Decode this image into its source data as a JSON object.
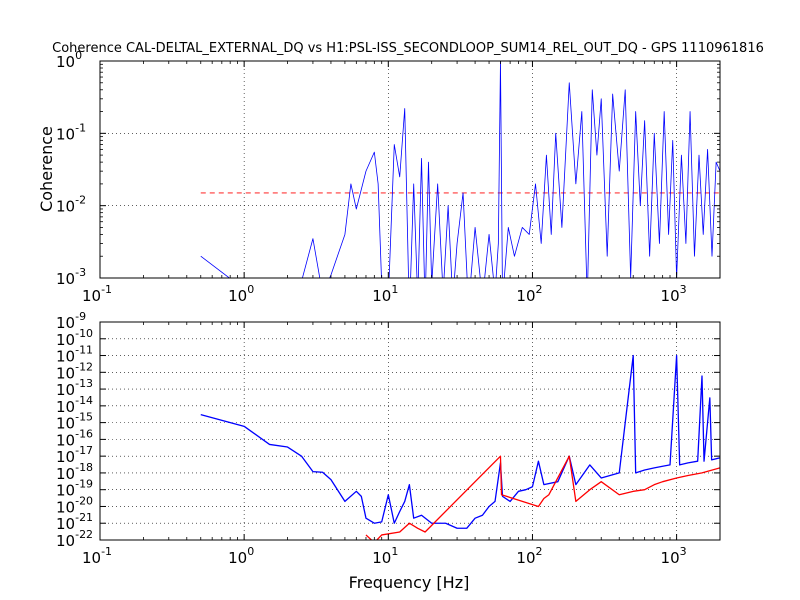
{
  "chart_data": [
    {
      "type": "line",
      "title": "Coherence CAL-DELTAL_EXTERNAL_DQ vs H1:PSL-ISS_SECONDLOOP_SUM14_REL_OUT_DQ - GPS 1110961816",
      "xlabel": "",
      "ylabel": "Coherence",
      "xscale": "log",
      "yscale": "log",
      "xlim": [
        0.1,
        2000
      ],
      "ylim": [
        0.001,
        1
      ],
      "grid": true,
      "x_tick_labels": [
        {
          "base": "10",
          "exp": "-1",
          "value": 0.1
        },
        {
          "base": "10",
          "exp": "0",
          "value": 1
        },
        {
          "base": "10",
          "exp": "1",
          "value": 10
        },
        {
          "base": "10",
          "exp": "2",
          "value": 100
        },
        {
          "base": "10",
          "exp": "3",
          "value": 1000
        }
      ],
      "y_tick_labels": [
        {
          "base": "10",
          "exp": "-3",
          "value": 0.001
        },
        {
          "base": "10",
          "exp": "-2",
          "value": 0.01
        },
        {
          "base": "10",
          "exp": "-1",
          "value": 0.1
        },
        {
          "base": "10",
          "exp": "0",
          "value": 1
        }
      ],
      "threshold": {
        "value": 0.015,
        "x_range": [
          0.5,
          2000
        ],
        "color": "#ff0000",
        "style": "dashed"
      },
      "series": [
        {
          "color": "#0000ff",
          "points": [
            [
              0.5,
              0.002
            ],
            [
              1.0,
              0.0007
            ],
            [
              2.5,
              0.0009
            ],
            [
              3.0,
              0.0035
            ],
            [
              3.5,
              0.0006
            ],
            [
              4.0,
              0.0011
            ],
            [
              5.0,
              0.004
            ],
            [
              5.5,
              0.02
            ],
            [
              6.0,
              0.009
            ],
            [
              7.0,
              0.03
            ],
            [
              8.0,
              0.055
            ],
            [
              8.5,
              0.02
            ],
            [
              9.0,
              0.0008
            ],
            [
              10.0,
              0.0005
            ],
            [
              11.0,
              0.07
            ],
            [
              12.0,
              0.025
            ],
            [
              13.0,
              0.22
            ],
            [
              14.0,
              0.0003
            ],
            [
              15.0,
              0.02
            ],
            [
              16.0,
              0.0005
            ],
            [
              17.0,
              0.045
            ],
            [
              18.0,
              0.0004
            ],
            [
              19.0,
              0.04
            ],
            [
              20.0,
              0.0008
            ],
            [
              22.0,
              0.02
            ],
            [
              24.0,
              0.0006
            ],
            [
              26.0,
              0.01
            ],
            [
              28.0,
              0.0005
            ],
            [
              30.0,
              0.003
            ],
            [
              33.0,
              0.015
            ],
            [
              36.0,
              0.0004
            ],
            [
              40.0,
              0.005
            ],
            [
              45.0,
              0.0005
            ],
            [
              50.0,
              0.004
            ],
            [
              55.0,
              0.0006
            ],
            [
              58.0,
              0.003
            ],
            [
              60.0,
              1.0
            ],
            [
              62.0,
              0.0005
            ],
            [
              68.0,
              0.005
            ],
            [
              75.0,
              0.002
            ],
            [
              85.0,
              0.005
            ],
            [
              95.0,
              0.004
            ],
            [
              105.0,
              0.02
            ],
            [
              115.0,
              0.003
            ],
            [
              125.0,
              0.05
            ],
            [
              135.0,
              0.004
            ],
            [
              145.0,
              0.1
            ],
            [
              160.0,
              0.005
            ],
            [
              180.0,
              0.5
            ],
            [
              200.0,
              0.02
            ],
            [
              220.0,
              0.2
            ],
            [
              240.0,
              0.0005
            ],
            [
              260.0,
              0.4
            ],
            [
              280.0,
              0.05
            ],
            [
              300.0,
              0.3
            ],
            [
              330.0,
              0.002
            ],
            [
              360.0,
              0.35
            ],
            [
              400.0,
              0.03
            ],
            [
              440.0,
              0.4
            ],
            [
              480.0,
              0.001
            ],
            [
              520.0,
              0.2
            ],
            [
              560.0,
              0.01
            ],
            [
              600.0,
              0.15
            ],
            [
              650.0,
              0.002
            ],
            [
              700.0,
              0.1
            ],
            [
              760.0,
              0.003
            ],
            [
              820.0,
              0.2
            ],
            [
              880.0,
              0.004
            ],
            [
              940.0,
              0.08
            ],
            [
              1000.0,
              0.001
            ],
            [
              1080.0,
              0.05
            ],
            [
              1160.0,
              0.003
            ],
            [
              1240.0,
              0.2
            ],
            [
              1330.0,
              0.002
            ],
            [
              1430.0,
              0.05
            ],
            [
              1530.0,
              0.004
            ],
            [
              1640.0,
              0.06
            ],
            [
              1760.0,
              0.002
            ],
            [
              1880.0,
              0.04
            ],
            [
              2000.0,
              0.03
            ]
          ]
        }
      ]
    },
    {
      "type": "line",
      "title": "",
      "xlabel": "Frequency [Hz]",
      "ylabel": "",
      "xscale": "log",
      "yscale": "log",
      "xlim": [
        0.1,
        2000
      ],
      "ylim": [
        1e-22,
        1e-09
      ],
      "grid": true,
      "x_tick_labels": [
        {
          "base": "10",
          "exp": "-1",
          "value": 0.1
        },
        {
          "base": "10",
          "exp": "0",
          "value": 1
        },
        {
          "base": "10",
          "exp": "1",
          "value": 10
        },
        {
          "base": "10",
          "exp": "2",
          "value": 100
        },
        {
          "base": "10",
          "exp": "3",
          "value": 1000
        }
      ],
      "y_tick_labels": [
        {
          "base": "10",
          "exp": "-22",
          "value": 1e-22
        },
        {
          "base": "10",
          "exp": "-21",
          "value": 1e-21
        },
        {
          "base": "10",
          "exp": "-20",
          "value": 1e-20
        },
        {
          "base": "10",
          "exp": "-19",
          "value": 1e-19
        },
        {
          "base": "10",
          "exp": "-18",
          "value": 1e-18
        },
        {
          "base": "10",
          "exp": "-17",
          "value": 1e-17
        },
        {
          "base": "10",
          "exp": "-16",
          "value": 1e-16
        },
        {
          "base": "10",
          "exp": "-15",
          "value": 1e-15
        },
        {
          "base": "10",
          "exp": "-14",
          "value": 1e-14
        },
        {
          "base": "10",
          "exp": "-13",
          "value": 1e-13
        },
        {
          "base": "10",
          "exp": "-12",
          "value": 1e-12
        },
        {
          "base": "10",
          "exp": "-11",
          "value": 1e-11
        },
        {
          "base": "10",
          "exp": "-10",
          "value": 1e-10
        },
        {
          "base": "10",
          "exp": "-9",
          "value": 1e-09
        }
      ],
      "series": [
        {
          "color": "#0000ff",
          "points": [
            [
              0.5,
              3e-15
            ],
            [
              1.0,
              6e-16
            ],
            [
              1.5,
              5e-17
            ],
            [
              2.0,
              3.5e-17
            ],
            [
              2.5,
              1e-17
            ],
            [
              3.0,
              1.2e-18
            ],
            [
              3.5,
              1.1e-18
            ],
            [
              4.0,
              4e-19
            ],
            [
              5.0,
              2e-20
            ],
            [
              6.0,
              8e-20
            ],
            [
              6.5,
              4e-20
            ],
            [
              7.0,
              2e-21
            ],
            [
              8.0,
              1e-21
            ],
            [
              9.0,
              1.2e-21
            ],
            [
              10.0,
              5e-20
            ],
            [
              11.0,
              1e-21
            ],
            [
              12.0,
              5e-21
            ],
            [
              13.0,
              2e-20
            ],
            [
              14.0,
              2e-19
            ],
            [
              15.0,
              2e-21
            ],
            [
              17.0,
              3e-21
            ],
            [
              20.0,
              1e-21
            ],
            [
              25.0,
              1e-21
            ],
            [
              30.0,
              5e-22
            ],
            [
              35.0,
              5e-22
            ],
            [
              40.0,
              2e-21
            ],
            [
              45.0,
              3e-21
            ],
            [
              50.0,
              1e-20
            ],
            [
              55.0,
              2e-20
            ],
            [
              60.0,
              4e-18
            ],
            [
              62.0,
              4e-20
            ],
            [
              70.0,
              2e-20
            ],
            [
              80.0,
              8e-20
            ],
            [
              90.0,
              1e-19
            ],
            [
              100.0,
              1.5e-19
            ],
            [
              110.0,
              5e-18
            ],
            [
              120.0,
              2e-19
            ],
            [
              150.0,
              3e-19
            ],
            [
              180.0,
              1e-17
            ],
            [
              200.0,
              2e-19
            ],
            [
              250.0,
              3e-18
            ],
            [
              300.0,
              5e-19
            ],
            [
              400.0,
              1e-18
            ],
            [
              500.0,
              1e-11
            ],
            [
              520.0,
              1e-18
            ],
            [
              600.0,
              1.5e-18
            ],
            [
              700.0,
              2e-18
            ],
            [
              800.0,
              2.5e-18
            ],
            [
              900.0,
              3e-18
            ],
            [
              1000.0,
              1e-11
            ],
            [
              1050.0,
              3e-18
            ],
            [
              1200.0,
              4e-18
            ],
            [
              1400.0,
              5e-18
            ],
            [
              1500.0,
              6e-13
            ],
            [
              1550.0,
              5e-18
            ],
            [
              1700.0,
              3e-14
            ],
            [
              1750.0,
              6e-18
            ],
            [
              2000.0,
              8e-18
            ]
          ]
        },
        {
          "color": "#ff0000",
          "points": [
            [
              7.0,
              2e-22
            ],
            [
              8.0,
              7e-23
            ],
            [
              9.0,
              2e-22
            ],
            [
              12.0,
              3e-22
            ],
            [
              14.0,
              1e-21
            ],
            [
              16.0,
              5e-22
            ],
            [
              18.0,
              3e-22
            ],
            [
              60.0,
              1e-17
            ],
            [
              61.0,
              5e-20
            ],
            [
              110.0,
              1e-20
            ],
            [
              120.0,
              3e-20
            ],
            [
              130.0,
              5e-20
            ],
            [
              180.0,
              1e-17
            ],
            [
              200.0,
              2e-20
            ],
            [
              250.0,
              1e-19
            ],
            [
              300.0,
              3e-19
            ],
            [
              400.0,
              5e-20
            ],
            [
              500.0,
              8e-20
            ],
            [
              600.0,
              1e-19
            ],
            [
              700.0,
              2e-19
            ],
            [
              800.0,
              3e-19
            ],
            [
              1000.0,
              5e-19
            ],
            [
              1200.0,
              7e-19
            ],
            [
              1500.0,
              1e-18
            ],
            [
              2000.0,
              2e-18
            ]
          ]
        }
      ]
    }
  ]
}
